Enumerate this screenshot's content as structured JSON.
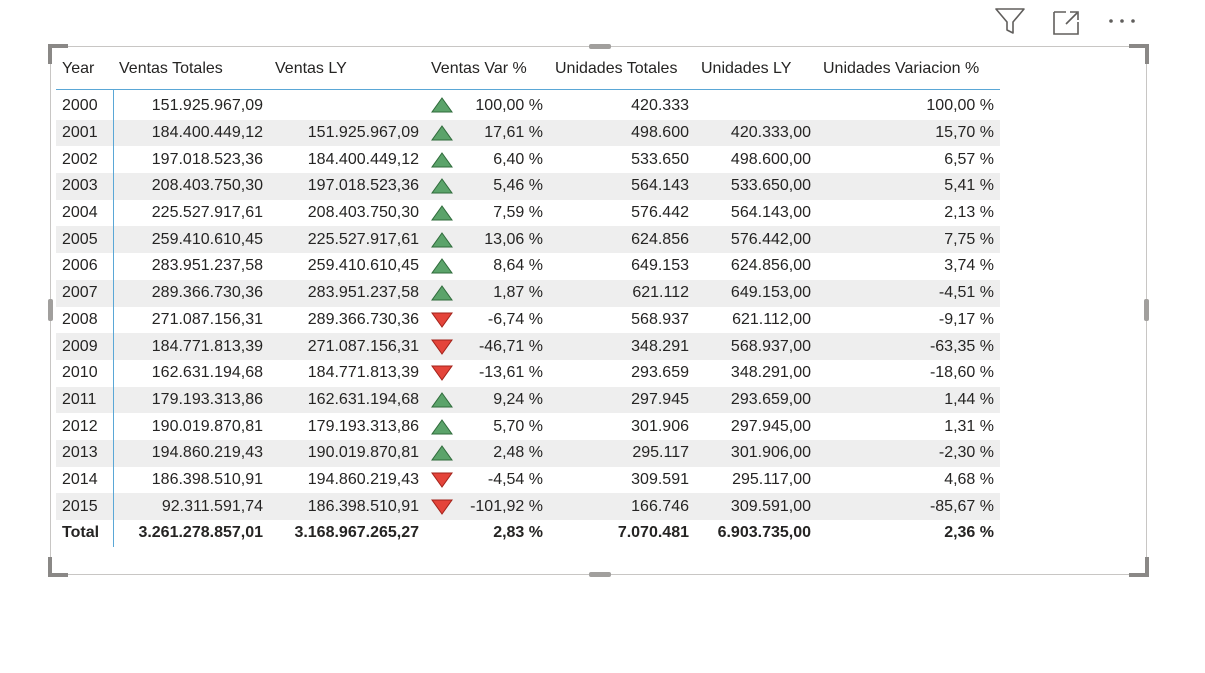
{
  "toolbar": {
    "filter_icon": "filter-icon",
    "focus_icon": "focus-mode-icon",
    "more_icon": "more-options-icon"
  },
  "colors": {
    "up": "#5ba36a",
    "down": "#e4443a",
    "accent": "#5aa7d6",
    "alt_row": "#eeeeee"
  },
  "table": {
    "headers": [
      "Year",
      "Ventas Totales",
      "Ventas LY",
      "Ventas Var %",
      "Unidades Totales",
      "Unidades LY",
      "Unidades Variacion %"
    ],
    "rows": [
      {
        "year": "2000",
        "ventas": "151.925.967,09",
        "ventas_ly": "",
        "trend": "up",
        "ventas_var": "100,00 %",
        "unidades": "420.333",
        "unidades_ly": "",
        "unidades_var": "100,00 %"
      },
      {
        "year": "2001",
        "ventas": "184.400.449,12",
        "ventas_ly": "151.925.967,09",
        "trend": "up",
        "ventas_var": "17,61 %",
        "unidades": "498.600",
        "unidades_ly": "420.333,00",
        "unidades_var": "15,70 %"
      },
      {
        "year": "2002",
        "ventas": "197.018.523,36",
        "ventas_ly": "184.400.449,12",
        "trend": "up",
        "ventas_var": "6,40 %",
        "unidades": "533.650",
        "unidades_ly": "498.600,00",
        "unidades_var": "6,57 %"
      },
      {
        "year": "2003",
        "ventas": "208.403.750,30",
        "ventas_ly": "197.018.523,36",
        "trend": "up",
        "ventas_var": "5,46 %",
        "unidades": "564.143",
        "unidades_ly": "533.650,00",
        "unidades_var": "5,41 %"
      },
      {
        "year": "2004",
        "ventas": "225.527.917,61",
        "ventas_ly": "208.403.750,30",
        "trend": "up",
        "ventas_var": "7,59 %",
        "unidades": "576.442",
        "unidades_ly": "564.143,00",
        "unidades_var": "2,13 %"
      },
      {
        "year": "2005",
        "ventas": "259.410.610,45",
        "ventas_ly": "225.527.917,61",
        "trend": "up",
        "ventas_var": "13,06 %",
        "unidades": "624.856",
        "unidades_ly": "576.442,00",
        "unidades_var": "7,75 %"
      },
      {
        "year": "2006",
        "ventas": "283.951.237,58",
        "ventas_ly": "259.410.610,45",
        "trend": "up",
        "ventas_var": "8,64 %",
        "unidades": "649.153",
        "unidades_ly": "624.856,00",
        "unidades_var": "3,74 %"
      },
      {
        "year": "2007",
        "ventas": "289.366.730,36",
        "ventas_ly": "283.951.237,58",
        "trend": "up",
        "ventas_var": "1,87 %",
        "unidades": "621.112",
        "unidades_ly": "649.153,00",
        "unidades_var": "-4,51 %"
      },
      {
        "year": "2008",
        "ventas": "271.087.156,31",
        "ventas_ly": "289.366.730,36",
        "trend": "down",
        "ventas_var": "-6,74 %",
        "unidades": "568.937",
        "unidades_ly": "621.112,00",
        "unidades_var": "-9,17 %"
      },
      {
        "year": "2009",
        "ventas": "184.771.813,39",
        "ventas_ly": "271.087.156,31",
        "trend": "down",
        "ventas_var": "-46,71 %",
        "unidades": "348.291",
        "unidades_ly": "568.937,00",
        "unidades_var": "-63,35 %"
      },
      {
        "year": "2010",
        "ventas": "162.631.194,68",
        "ventas_ly": "184.771.813,39",
        "trend": "down",
        "ventas_var": "-13,61 %",
        "unidades": "293.659",
        "unidades_ly": "348.291,00",
        "unidades_var": "-18,60 %"
      },
      {
        "year": "2011",
        "ventas": "179.193.313,86",
        "ventas_ly": "162.631.194,68",
        "trend": "up",
        "ventas_var": "9,24 %",
        "unidades": "297.945",
        "unidades_ly": "293.659,00",
        "unidades_var": "1,44 %"
      },
      {
        "year": "2012",
        "ventas": "190.019.870,81",
        "ventas_ly": "179.193.313,86",
        "trend": "up",
        "ventas_var": "5,70 %",
        "unidades": "301.906",
        "unidades_ly": "297.945,00",
        "unidades_var": "1,31 %"
      },
      {
        "year": "2013",
        "ventas": "194.860.219,43",
        "ventas_ly": "190.019.870,81",
        "trend": "up",
        "ventas_var": "2,48 %",
        "unidades": "295.117",
        "unidades_ly": "301.906,00",
        "unidades_var": "-2,30 %"
      },
      {
        "year": "2014",
        "ventas": "186.398.510,91",
        "ventas_ly": "194.860.219,43",
        "trend": "down",
        "ventas_var": "-4,54 %",
        "unidades": "309.591",
        "unidades_ly": "295.117,00",
        "unidades_var": "4,68 %"
      },
      {
        "year": "2015",
        "ventas": "92.311.591,74",
        "ventas_ly": "186.398.510,91",
        "trend": "down",
        "ventas_var": "-101,92 %",
        "unidades": "166.746",
        "unidades_ly": "309.591,00",
        "unidades_var": "-85,67 %"
      }
    ],
    "total": {
      "year": "Total",
      "ventas": "3.261.278.857,01",
      "ventas_ly": "3.168.967.265,27",
      "ventas_var": "2,83 %",
      "unidades": "7.070.481",
      "unidades_ly": "6.903.735,00",
      "unidades_var": "2,36 %"
    }
  }
}
